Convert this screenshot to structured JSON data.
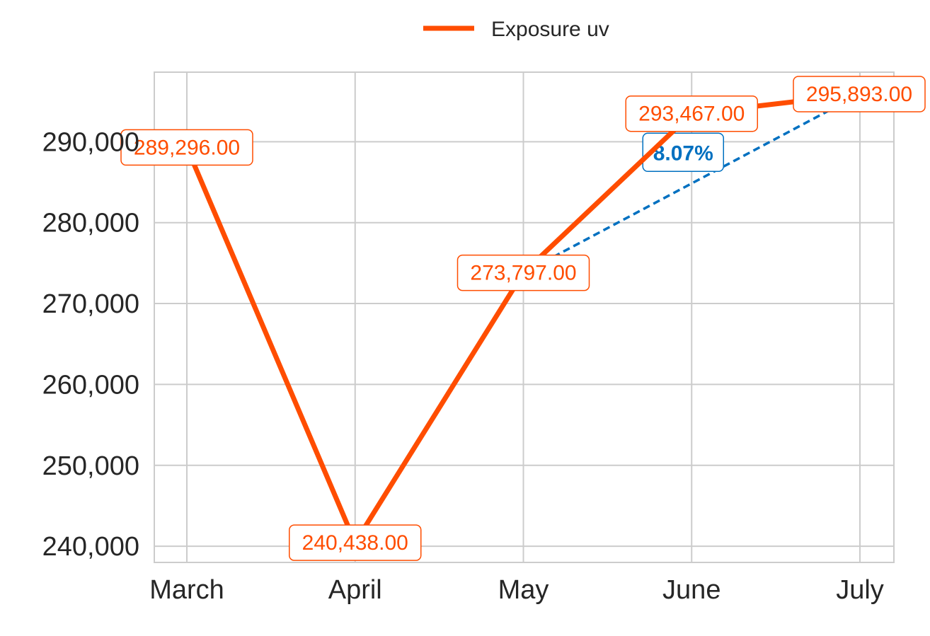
{
  "chart_data": {
    "type": "line",
    "title": "",
    "xlabel": "",
    "ylabel": "",
    "categories": [
      "March",
      "April",
      "May",
      "June",
      "July"
    ],
    "series": [
      {
        "name": "Exposure uv",
        "color": "#FF4D00",
        "values": [
          289296,
          240438,
          273797,
          293467,
          295893
        ],
        "data_labels": [
          "289,296.00",
          "240,438.00",
          "273,797.00",
          "293,467.00",
          "295,893.00"
        ]
      }
    ],
    "yticks": [
      240000,
      250000,
      260000,
      270000,
      280000,
      290000
    ],
    "ytick_labels": [
      "240,000",
      "250,000",
      "260,000",
      "270,000",
      "280,000",
      "290,000"
    ],
    "ylim": [
      238000,
      298600
    ],
    "grid": true,
    "legend": {
      "position": "top-center",
      "entries": [
        "Exposure uv"
      ]
    },
    "annotation": {
      "text": "8.07%",
      "from_category": "May",
      "to_category": "July",
      "color": "#0070C0",
      "style": "dashed"
    }
  }
}
